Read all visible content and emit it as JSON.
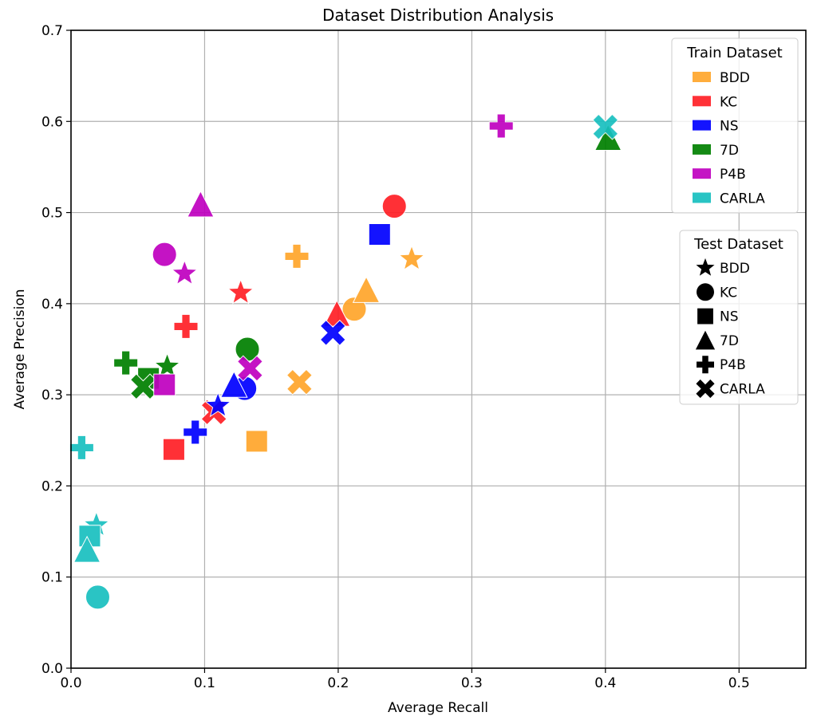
{
  "chart_data": {
    "type": "scatter",
    "title": "Dataset Distribution Analysis",
    "xlabel": "Average Recall",
    "ylabel": "Average Precision",
    "xlim": [
      0.0,
      0.55
    ],
    "ylim": [
      0.0,
      0.7
    ],
    "xticks": [
      "0.0",
      "0.1",
      "0.2",
      "0.3",
      "0.4",
      "0.5"
    ],
    "xtick_values": [
      0.0,
      0.1,
      0.2,
      0.3,
      0.4,
      0.5
    ],
    "yticks": [
      "0.0",
      "0.1",
      "0.2",
      "0.3",
      "0.4",
      "0.5",
      "0.6",
      "0.7"
    ],
    "ytick_values": [
      0.0,
      0.1,
      0.2,
      0.3,
      0.4,
      0.5,
      0.6,
      0.7
    ],
    "grid": true,
    "legends": [
      {
        "title": "Train Dataset",
        "placement": "top-right",
        "encoding": "color",
        "entries": [
          {
            "label": "BDD",
            "color": "#FFA62B"
          },
          {
            "label": "KC",
            "color": "#FF1F26"
          },
          {
            "label": "NS",
            "color": "#0000FF"
          },
          {
            "label": "7D",
            "color": "#008000"
          },
          {
            "label": "P4B",
            "color": "#BF00BF"
          },
          {
            "label": "CARLA",
            "color": "#17BFBF"
          }
        ]
      },
      {
        "title": "Test Dataset",
        "placement": "right",
        "encoding": "marker",
        "entries": [
          {
            "label": "BDD",
            "marker": "star"
          },
          {
            "label": "KC",
            "marker": "circle"
          },
          {
            "label": "NS",
            "marker": "square"
          },
          {
            "label": "7D",
            "marker": "triangle"
          },
          {
            "label": "P4B",
            "marker": "plus"
          },
          {
            "label": "CARLA",
            "marker": "x"
          }
        ]
      }
    ],
    "series": [
      {
        "name": "BDD",
        "color": "#FFA62B",
        "points": [
          {
            "test": "BDD",
            "marker": "star",
            "x": 0.255,
            "y": 0.449
          },
          {
            "test": "KC",
            "marker": "circle",
            "x": 0.212,
            "y": 0.394
          },
          {
            "test": "NS",
            "marker": "square",
            "x": 0.139,
            "y": 0.249
          },
          {
            "test": "7D",
            "marker": "triangle",
            "x": 0.221,
            "y": 0.415
          },
          {
            "test": "P4B",
            "marker": "plus",
            "x": 0.169,
            "y": 0.452
          },
          {
            "test": "CARLA",
            "marker": "x",
            "x": 0.171,
            "y": 0.314
          }
        ]
      },
      {
        "name": "KC",
        "color": "#FF1F26",
        "points": [
          {
            "test": "BDD",
            "marker": "star",
            "x": 0.127,
            "y": 0.412
          },
          {
            "test": "KC",
            "marker": "circle",
            "x": 0.242,
            "y": 0.507
          },
          {
            "test": "NS",
            "marker": "square",
            "x": 0.077,
            "y": 0.24
          },
          {
            "test": "7D",
            "marker": "triangle",
            "x": 0.199,
            "y": 0.389
          },
          {
            "test": "P4B",
            "marker": "plus",
            "x": 0.086,
            "y": 0.375
          },
          {
            "test": "CARLA",
            "marker": "x",
            "x": 0.107,
            "y": 0.281
          }
        ]
      },
      {
        "name": "NS",
        "color": "#0000FF",
        "points": [
          {
            "test": "BDD",
            "marker": "star",
            "x": 0.11,
            "y": 0.288
          },
          {
            "test": "KC",
            "marker": "circle",
            "x": 0.13,
            "y": 0.307
          },
          {
            "test": "NS",
            "marker": "square",
            "x": 0.231,
            "y": 0.476
          },
          {
            "test": "7D",
            "marker": "triangle",
            "x": 0.122,
            "y": 0.311
          },
          {
            "test": "P4B",
            "marker": "plus",
            "x": 0.093,
            "y": 0.259
          },
          {
            "test": "CARLA",
            "marker": "x",
            "x": 0.196,
            "y": 0.368
          }
        ]
      },
      {
        "name": "7D",
        "color": "#008000",
        "points": [
          {
            "test": "BDD",
            "marker": "star",
            "x": 0.072,
            "y": 0.331
          },
          {
            "test": "KC",
            "marker": "circle",
            "x": 0.132,
            "y": 0.35
          },
          {
            "test": "NS",
            "marker": "square",
            "x": 0.058,
            "y": 0.318
          },
          {
            "test": "7D",
            "marker": "triangle",
            "x": 0.402,
            "y": 0.582
          },
          {
            "test": "P4B",
            "marker": "plus",
            "x": 0.041,
            "y": 0.335
          },
          {
            "test": "CARLA",
            "marker": "x",
            "x": 0.054,
            "y": 0.309
          }
        ]
      },
      {
        "name": "P4B",
        "color": "#BF00BF",
        "points": [
          {
            "test": "BDD",
            "marker": "star",
            "x": 0.085,
            "y": 0.433
          },
          {
            "test": "KC",
            "marker": "circle",
            "x": 0.07,
            "y": 0.454
          },
          {
            "test": "NS",
            "marker": "square",
            "x": 0.07,
            "y": 0.311
          },
          {
            "test": "7D",
            "marker": "triangle",
            "x": 0.097,
            "y": 0.509
          },
          {
            "test": "P4B",
            "marker": "plus",
            "x": 0.322,
            "y": 0.595
          },
          {
            "test": "CARLA",
            "marker": "x",
            "x": 0.134,
            "y": 0.329
          }
        ]
      },
      {
        "name": "CARLA",
        "color": "#17BFBF",
        "points": [
          {
            "test": "BDD",
            "marker": "star",
            "x": 0.019,
            "y": 0.157
          },
          {
            "test": "KC",
            "marker": "circle",
            "x": 0.02,
            "y": 0.078
          },
          {
            "test": "NS",
            "marker": "square",
            "x": 0.014,
            "y": 0.145
          },
          {
            "test": "7D",
            "marker": "triangle",
            "x": 0.012,
            "y": 0.13
          },
          {
            "test": "P4B",
            "marker": "plus",
            "x": 0.008,
            "y": 0.242
          },
          {
            "test": "CARLA",
            "marker": "x",
            "x": 0.4,
            "y": 0.594
          }
        ]
      }
    ]
  }
}
